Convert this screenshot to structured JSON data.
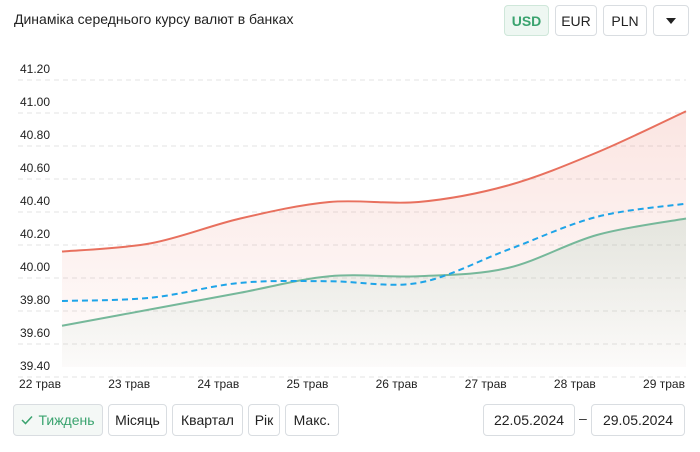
{
  "header": {
    "title": "Динаміка середнього курсу валют в банках",
    "currencies": [
      "USD",
      "EUR",
      "PLN"
    ]
  },
  "chart_data": {
    "type": "line",
    "categories": [
      "22 трав",
      "23 трав",
      "24 трав",
      "25 трав",
      "26 трав",
      "27 трав",
      "28 трав",
      "29 трав"
    ],
    "series": [
      {
        "color": "#e8705e",
        "values": [
          40.1,
          40.15,
          40.3,
          40.4,
          40.4,
          40.5,
          40.7,
          40.95
        ]
      },
      {
        "color": "#76b89a",
        "values": [
          39.65,
          39.75,
          39.85,
          39.95,
          39.95,
          40.0,
          40.2,
          40.3
        ]
      },
      {
        "color": "#1ea4e8",
        "dashed": true,
        "values": [
          39.8,
          39.82,
          39.91,
          39.92,
          39.91,
          40.11,
          40.31,
          40.39
        ]
      }
    ],
    "ylim": [
      39.4,
      41.2
    ],
    "yticks": [
      {
        "value": 39.4,
        "label": "39.40"
      },
      {
        "value": 39.6,
        "label": "39.60"
      },
      {
        "value": 39.8,
        "label": "39.80"
      },
      {
        "value": 40.0,
        "label": "40.00"
      },
      {
        "value": 40.2,
        "label": "40.20"
      },
      {
        "value": 40.4,
        "label": "40.40"
      },
      {
        "value": 40.6,
        "label": "40.60"
      },
      {
        "value": 40.8,
        "label": "40.80"
      },
      {
        "value": 41.0,
        "label": "41.00"
      },
      {
        "value": 41.2,
        "label": "41.20"
      }
    ],
    "grid": true
  },
  "controls": {
    "periods": [
      "Тиждень",
      "Місяць",
      "Квартал",
      "Рік",
      "Макс."
    ],
    "date_from": "22.05.2024",
    "date_to": "29.05.2024"
  }
}
